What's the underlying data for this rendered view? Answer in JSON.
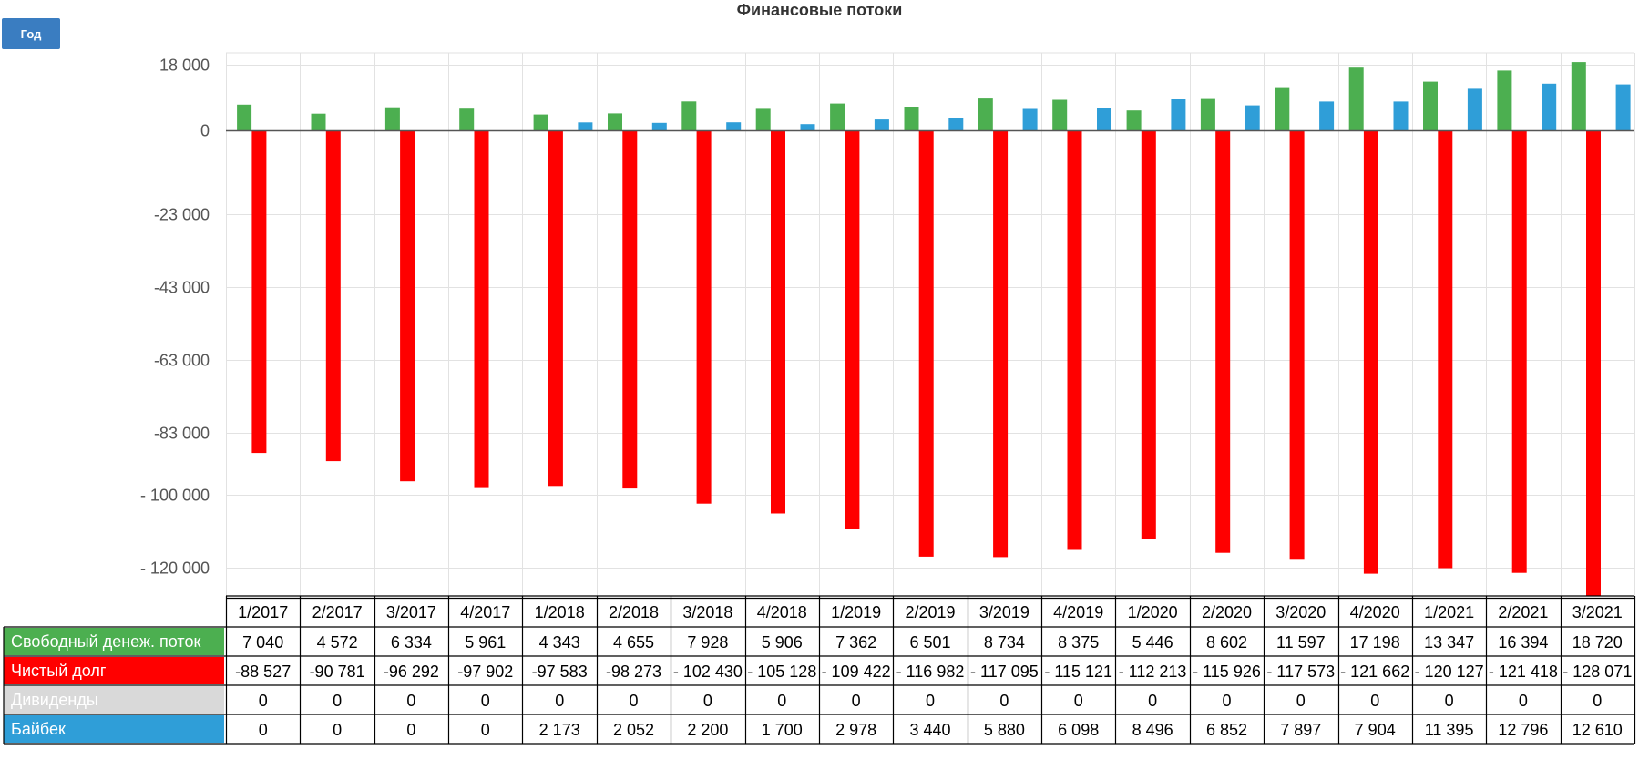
{
  "title": "Финансовые потоки",
  "period_button": "Год",
  "colors": {
    "fcf": "#4caf50",
    "debt": "#ff0000",
    "dividends": "#d9d9d9",
    "buyback": "#2f9ed8",
    "grid": "#e2e2e2",
    "button": "#3a7dc1"
  },
  "chart_data": {
    "type": "bar",
    "title": "Финансовые потоки",
    "categories": [
      "1/2017",
      "2/2017",
      "3/2017",
      "4/2017",
      "1/2018",
      "2/2018",
      "3/2018",
      "4/2018",
      "1/2019",
      "2/2019",
      "3/2019",
      "4/2019",
      "1/2020",
      "2/2020",
      "3/2020",
      "4/2020",
      "1/2021",
      "2/2021",
      "3/2021"
    ],
    "y_ticks": [
      {
        "value": 18000,
        "label": "18 000"
      },
      {
        "value": 0,
        "label": "0"
      },
      {
        "value": -23000,
        "label": "-23 000"
      },
      {
        "value": -43000,
        "label": "-43 000"
      },
      {
        "value": -63000,
        "label": "-63 000"
      },
      {
        "value": -83000,
        "label": "-83 000"
      },
      {
        "value": -100000,
        "label": "- 100 000"
      },
      {
        "value": -120000,
        "label": "- 120 000"
      }
    ],
    "ylim": [
      -126000,
      20000
    ],
    "grid": true,
    "series": [
      {
        "name": "Свободный денеж. поток",
        "color": "#4caf50",
        "values": [
          7040,
          4572,
          6334,
          5961,
          4343,
          4655,
          7928,
          5906,
          7362,
          6501,
          8734,
          8375,
          5446,
          8602,
          11597,
          17198,
          13347,
          16394,
          18720
        ],
        "labels": [
          "7 040",
          "4 572",
          "6 334",
          "5 961",
          "4 343",
          "4 655",
          "7 928",
          "5 906",
          "7 362",
          "6 501",
          "8 734",
          "8 375",
          "5 446",
          "8 602",
          "11 597",
          "17 198",
          "13 347",
          "16 394",
          "18 720"
        ]
      },
      {
        "name": "Чистый долг",
        "color": "#ff0000",
        "values": [
          -88527,
          -90781,
          -96292,
          -97902,
          -97583,
          -98273,
          -102430,
          -105128,
          -109422,
          -116982,
          -117095,
          -115121,
          -112213,
          -115926,
          -117573,
          -121662,
          -120127,
          -121418,
          -128071
        ],
        "labels": [
          "-88 527",
          "-90 781",
          "-96 292",
          "-97 902",
          "-97 583",
          "-98 273",
          "- 102 430",
          "- 105 128",
          "- 109 422",
          "- 116 982",
          "- 117 095",
          "- 115 121",
          "- 112 213",
          "- 115 926",
          "- 117 573",
          "- 121 662",
          "- 120 127",
          "- 121 418",
          "- 128 071"
        ]
      },
      {
        "name": "Дивиденды",
        "color": "#d9d9d9",
        "values": [
          0,
          0,
          0,
          0,
          0,
          0,
          0,
          0,
          0,
          0,
          0,
          0,
          0,
          0,
          0,
          0,
          0,
          0,
          0
        ],
        "labels": [
          "0",
          "0",
          "0",
          "0",
          "0",
          "0",
          "0",
          "0",
          "0",
          "0",
          "0",
          "0",
          "0",
          "0",
          "0",
          "0",
          "0",
          "0",
          "0"
        ]
      },
      {
        "name": "Байбек",
        "color": "#2f9ed8",
        "values": [
          0,
          0,
          0,
          0,
          2173,
          2052,
          2200,
          1700,
          2978,
          3440,
          5880,
          6098,
          8496,
          6852,
          7897,
          7904,
          11395,
          12796,
          12610
        ],
        "labels": [
          "0",
          "0",
          "0",
          "0",
          "2 173",
          "2 052",
          "2 200",
          "1 700",
          "2 978",
          "3 440",
          "5 880",
          "6 098",
          "8 496",
          "6 852",
          "7 897",
          "7 904",
          "11 395",
          "12 796",
          "12 610"
        ]
      }
    ]
  }
}
